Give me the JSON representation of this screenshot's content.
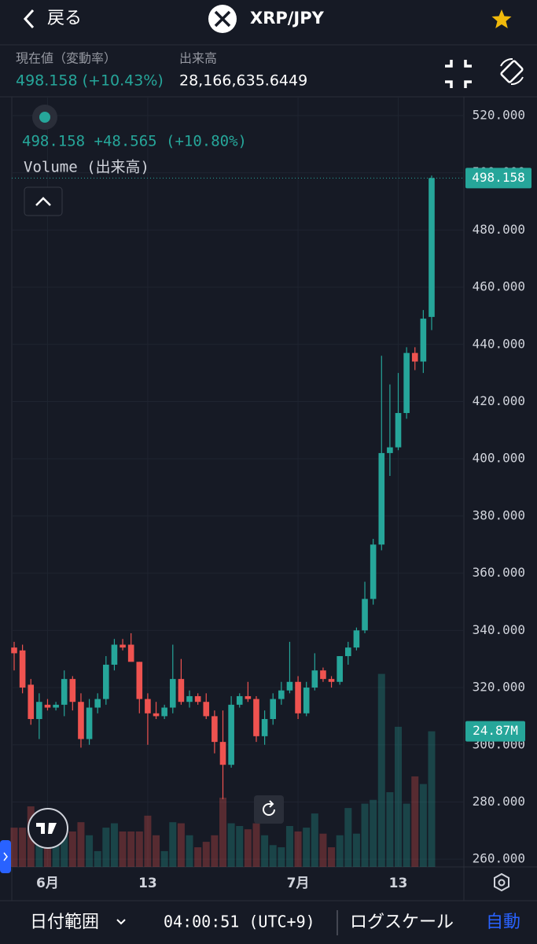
{
  "header": {
    "back": "戻る",
    "title": "XRP/JPY"
  },
  "info": {
    "price_label": "現在値（変動率）",
    "price": "498.158 (+10.43%)",
    "volume_label": "出来高",
    "volume": "28,166,635.6449"
  },
  "chart_data": {
    "type": "candlestick",
    "legend_price": "498.158 +48.565 (+10.80%)",
    "legend_volume": "Volume (出来高)",
    "categories": [
      null,
      null,
      null,
      null,
      "6月",
      null,
      null,
      null,
      null,
      null,
      null,
      null,
      null,
      null,
      null,
      null,
      "13",
      null,
      null,
      null,
      null,
      null,
      null,
      null,
      null,
      null,
      null,
      null,
      null,
      null,
      null,
      null,
      null,
      null,
      "7月",
      null,
      null,
      null,
      null,
      null,
      null,
      null,
      null,
      null,
      null,
      null,
      "13",
      null,
      null,
      null,
      null
    ],
    "open": [
      334,
      333,
      321,
      309,
      314,
      313,
      314,
      323,
      315,
      302,
      313,
      316,
      328,
      335,
      335,
      329,
      316,
      311,
      310,
      313,
      323,
      315,
      317,
      315,
      310,
      301,
      293,
      314,
      317,
      316,
      303,
      309,
      316,
      319,
      322,
      311,
      320,
      326,
      323,
      322,
      331,
      334,
      340,
      351,
      370,
      402,
      404,
      416,
      437,
      434,
      449.593
    ],
    "high": [
      336,
      335,
      323,
      318,
      316,
      315,
      326,
      324,
      318,
      316,
      318,
      331,
      337,
      337,
      339,
      329,
      318,
      315,
      314,
      335,
      330,
      319,
      318,
      318,
      312,
      312,
      317,
      318,
      322,
      317,
      312,
      318,
      322,
      336,
      324,
      322,
      332,
      327,
      324,
      331,
      336,
      341,
      357,
      372,
      436,
      426,
      430,
      439,
      439,
      452,
      499
    ],
    "low": [
      326,
      318,
      307,
      302,
      312,
      312,
      310,
      312,
      299,
      300,
      311,
      314,
      326,
      333,
      330,
      311,
      300,
      309,
      309,
      311,
      314,
      313,
      314,
      309,
      297,
      281,
      292,
      313,
      315,
      301,
      300,
      307,
      314,
      318,
      309,
      310,
      319,
      322,
      320,
      321,
      328,
      333,
      339,
      349,
      368,
      394,
      403,
      414,
      431,
      430,
      445
    ],
    "close": [
      332,
      320,
      309,
      315,
      313,
      314,
      323,
      315,
      302,
      313,
      316,
      328,
      335,
      334,
      329,
      316,
      311,
      310,
      313,
      323,
      315,
      317,
      315,
      310,
      301,
      293,
      314,
      317,
      316,
      303,
      309,
      316,
      319,
      322,
      311,
      320,
      326,
      323,
      322,
      331,
      334,
      340,
      351,
      370,
      402,
      404,
      416,
      437,
      434,
      449,
      498.158
    ],
    "volume": {
      "axis": "y2",
      "values": [
        7.2,
        7.2,
        11.1,
        7.2,
        5.8,
        5.1,
        5.8,
        6.5,
        8.2,
        5.8,
        2.9,
        7.2,
        8.0,
        6.5,
        6.5,
        6.5,
        9.4,
        5.8,
        2.9,
        8.2,
        8.0,
        5.8,
        3.6,
        4.6,
        5.8,
        12.7,
        8.0,
        7.5,
        6.9,
        8.0,
        5.8,
        4.0,
        3.6,
        7.5,
        6.5,
        7.2,
        9.8,
        6.1,
        3.6,
        5.8,
        10.8,
        6.1,
        11.6,
        12.3,
        35.4,
        13.7,
        25.7,
        11.6,
        16.6,
        15.2,
        24.87
      ],
      "value_labels": [
        null,
        null,
        null,
        null,
        null,
        null,
        null,
        null,
        null,
        null,
        null,
        null,
        null,
        null,
        null,
        null,
        null,
        null,
        null,
        null,
        null,
        null,
        null,
        null,
        null,
        null,
        null,
        null,
        null,
        null,
        null,
        null,
        null,
        null,
        null,
        null,
        null,
        null,
        null,
        null,
        null,
        null,
        null,
        null,
        null,
        null,
        null,
        null,
        null,
        null,
        "24.87M"
      ]
    },
    "last_price": {
      "value": 498.158,
      "label": "498.158"
    },
    "up_color": "#26a69a",
    "down_color": "#ef5350",
    "ylim": [
      257.3,
      526.3
    ],
    "yticks": [
      {
        "value": 260,
        "label": "260.000"
      },
      {
        "value": 280,
        "label": "280.000"
      },
      {
        "value": 300,
        "label": "300.000"
      },
      {
        "value": 320,
        "label": "320.000"
      },
      {
        "value": 340,
        "label": "340.000"
      },
      {
        "value": 360,
        "label": "360.000"
      },
      {
        "value": 380,
        "label": "380.000"
      },
      {
        "value": 400,
        "label": "400.000"
      },
      {
        "value": 420,
        "label": "420.000"
      },
      {
        "value": 440,
        "label": "440.000"
      },
      {
        "value": 460,
        "label": "460.000"
      },
      {
        "value": 480,
        "label": "480.000"
      },
      {
        "value": 500,
        "label": "500.000"
      },
      {
        "value": 520,
        "label": "520.000"
      }
    ],
    "y2lim": [
      0,
      141.1
    ],
    "grid": true
  },
  "footer": {
    "range": "日付範囲",
    "time": "04:00:51 (UTC+9)",
    "log": "ログスケール",
    "auto": "自動"
  }
}
